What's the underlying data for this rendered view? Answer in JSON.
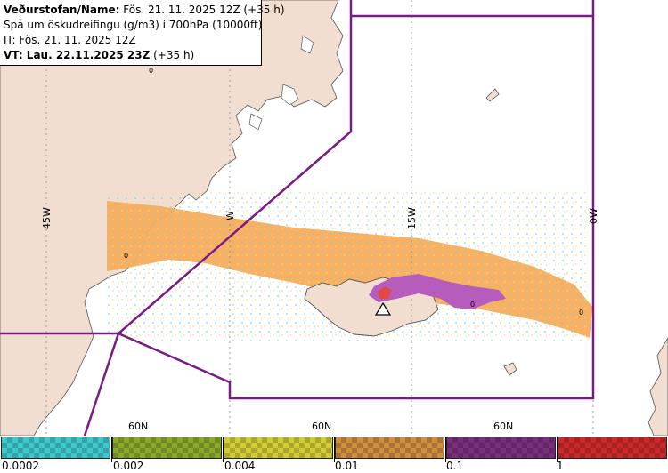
{
  "header": {
    "line1_bold": "Veðurstofan/Name:",
    "line1_rest": " Fös. 21. 11. 2025 12Z (+35 h)",
    "line2": "Spá um öskudreifingu (g/m3) í 700hPa (10000ft)",
    "line3": "IT: Fös. 21. 11. 2025 12Z",
    "line4_bold": "VT: Lau. 22.11.2025 23Z",
    "line4_rest": " (+35 h)"
  },
  "map": {
    "longitude_labels": [
      "45W",
      "W",
      "15W",
      "0W"
    ],
    "latitude_labels": [
      "60N",
      "60N",
      "60N"
    ],
    "contour_labels": [
      "0",
      "0",
      "0",
      "0"
    ],
    "marker": "volcano-triangle"
  },
  "legend": {
    "ticks": [
      "0.0002",
      "0.002",
      "0.004",
      "0.01",
      "0.1",
      "1"
    ],
    "colors": [
      "#3ec8cc",
      "#8aa82a",
      "#d2cc34",
      "#d08e3e",
      "#7a2e7e",
      "#cc2a2a"
    ]
  },
  "colors": {
    "land": "#f2ded1",
    "sea": "#ffffff",
    "boundary": "#7a1a86",
    "ash_low": "#f7ac5c",
    "ash_mid": "#b65cbd",
    "ash_high": "#e24848"
  }
}
